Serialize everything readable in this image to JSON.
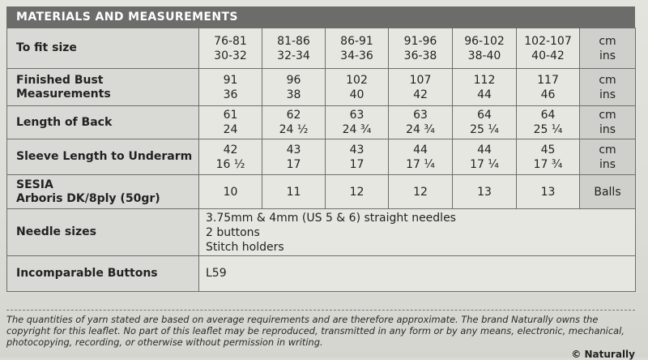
{
  "header": {
    "title": "MATERIALS AND MEASUREMENTS"
  },
  "rows": [
    {
      "label": [
        "To fit size"
      ],
      "values": [
        [
          "76-81",
          "30-32"
        ],
        [
          "81-86",
          "32-34"
        ],
        [
          "86-91",
          "34-36"
        ],
        [
          "91-96",
          "36-38"
        ],
        [
          "96-102",
          "38-40"
        ],
        [
          "102-107",
          "40-42"
        ]
      ],
      "unit": [
        "cm",
        "ins"
      ]
    },
    {
      "label": [
        "Finished Bust",
        "Measurements"
      ],
      "values": [
        [
          "91",
          "36"
        ],
        [
          "96",
          "38"
        ],
        [
          "102",
          "40"
        ],
        [
          "107",
          "42"
        ],
        [
          "112",
          "44"
        ],
        [
          "117",
          "46"
        ]
      ],
      "unit": [
        "cm",
        "ins"
      ]
    },
    {
      "label": [
        "Length of Back"
      ],
      "values": [
        [
          "61",
          "24"
        ],
        [
          "62",
          "24 ½"
        ],
        [
          "63",
          "24 ¾"
        ],
        [
          "63",
          "24 ¾"
        ],
        [
          "64",
          "25 ¼"
        ],
        [
          "64",
          "25 ¼"
        ]
      ],
      "unit": [
        "cm",
        "ins"
      ]
    },
    {
      "label": [
        "Sleeve Length to Underarm"
      ],
      "values": [
        [
          "42",
          "16 ½"
        ],
        [
          "43",
          "17"
        ],
        [
          "43",
          "17"
        ],
        [
          "44",
          "17 ¼"
        ],
        [
          "44",
          "17 ¼"
        ],
        [
          "45",
          "17 ¾"
        ]
      ],
      "unit": [
        "cm",
        "ins"
      ]
    },
    {
      "label": [
        "SESIA",
        "Arboris DK/8ply (50gr)"
      ],
      "values": [
        [
          "10"
        ],
        [
          "11"
        ],
        [
          "12"
        ],
        [
          "12"
        ],
        [
          "13"
        ],
        [
          "13"
        ]
      ],
      "unit": [
        "Balls"
      ]
    }
  ],
  "needles": {
    "label": "Needle sizes",
    "lines": [
      "3.75mm & 4mm (US 5 & 6) straight needles",
      "2 buttons",
      "Stitch holders"
    ]
  },
  "buttons": {
    "label": "Incomparable Buttons",
    "value": "L59"
  },
  "footer": {
    "disclaimer": "The quantities of yarn stated are based on average requirements and are therefore approximate. The brand Naturally owns the copyright for this leaflet. No part of this leaflet may be reproduced, transmitted in any form or by any means, electronic, mechanical, photocopying, recording, or otherwise without permission in writing.",
    "credit": "© Naturally"
  }
}
